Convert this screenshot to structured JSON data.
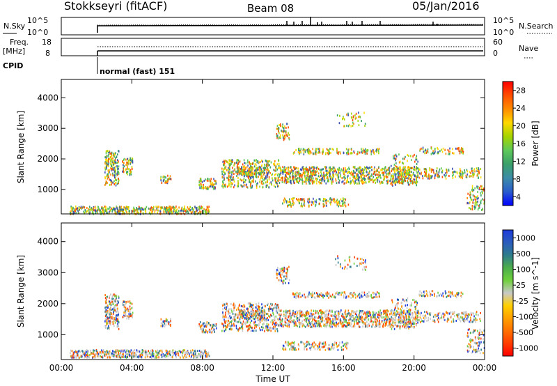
{
  "header": {
    "station": "Stokkseyri (fitACF)",
    "beam": "Beam 08",
    "date": "05/Jan/2016"
  },
  "nsky_panel": {
    "left_label": "N.Sky",
    "right_label": "N.Search",
    "left_ticks": [
      "10^5",
      "10^0"
    ],
    "right_ticks": [
      "10^5",
      "10^0"
    ]
  },
  "freq_panel": {
    "left_label_1": "Freq.",
    "left_label_2": "[MHz]",
    "left_ticks": [
      "18",
      "8"
    ],
    "right_label": "Nave",
    "right_ticks": [
      "60",
      "0"
    ]
  },
  "cpid_panel": {
    "label": "CPID",
    "program": "normal (fast) 151"
  },
  "chart_data": [
    {
      "type": "heatmap",
      "title": "Power",
      "ylabel": "Slant Range [km]",
      "ylim": [
        200,
        4600
      ],
      "yticks": [
        1000,
        2000,
        3000,
        4000
      ],
      "xlim_hours": [
        0,
        24
      ],
      "xticks": [
        "00:00",
        "04:00",
        "08:00",
        "12:00",
        "16:00",
        "20:00",
        "00:00"
      ],
      "colorbar": {
        "label": "Power [dB]",
        "ticks": [
          "28",
          "24",
          "20",
          "16",
          "12",
          "8",
          "4"
        ],
        "colors": [
          "#ff0000",
          "#ff4e00",
          "#ff8c00",
          "#ffd800",
          "#a4d400",
          "#5dc85a",
          "#3aa06a",
          "#3c8ca8",
          "#2a5ccc",
          "#0000ff"
        ]
      }
    },
    {
      "type": "heatmap",
      "title": "Velocity",
      "ylabel": "Slant Range [km]",
      "xlabel": "Time UT",
      "ylim": [
        200,
        4600
      ],
      "yticks": [
        1000,
        2000,
        3000,
        4000
      ],
      "xlim_hours": [
        0,
        24
      ],
      "xticks": [
        "00:00",
        "04:00",
        "08:00",
        "12:00",
        "16:00",
        "20:00",
        "00:00"
      ],
      "colorbar": {
        "label": "Velocity [m s^-1]",
        "ticks": [
          "1000",
          "500",
          "100",
          "25",
          "-25",
          "-100",
          "-500",
          "-1000"
        ],
        "colors": [
          "#1e3cdc",
          "#2a5cbc",
          "#2e7c8c",
          "#4cae4a",
          "#6fd03c",
          "#c8c8c8",
          "#ffd000",
          "#ffa000",
          "#ff7000",
          "#ff3c00",
          "#ff0000"
        ]
      }
    }
  ]
}
